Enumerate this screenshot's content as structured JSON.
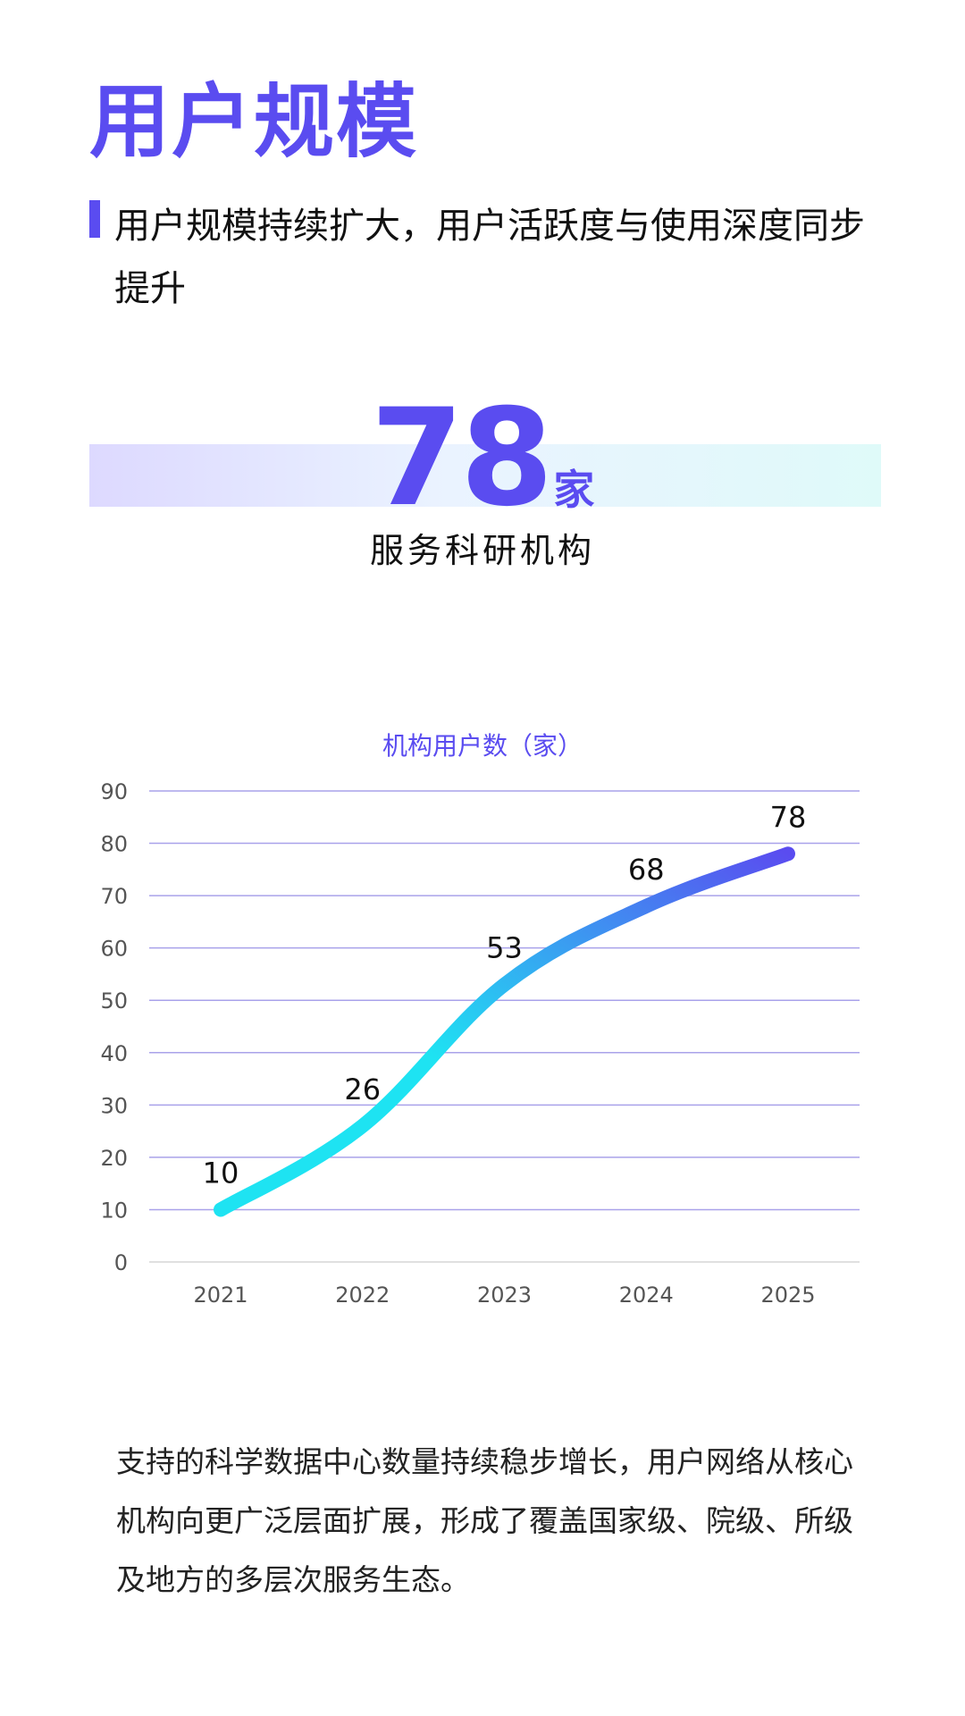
{
  "header": {
    "title": "用户规模",
    "subtitle": "用户规模持续扩大，用户活跃度与使用深度同步提升"
  },
  "stat": {
    "value": "78",
    "unit": "家",
    "label": "服务科研机构"
  },
  "chart_data": {
    "type": "line",
    "title": "机构用户数（家）",
    "xlabel": "",
    "ylabel": "",
    "categories": [
      "2021",
      "2022",
      "2023",
      "2024",
      "2025"
    ],
    "series": [
      {
        "values": [
          10,
          26,
          53,
          68,
          78
        ]
      }
    ],
    "data_labels": [
      "10",
      "26",
      "53",
      "68",
      "78"
    ],
    "y_ticks": [
      0,
      10,
      20,
      30,
      40,
      50,
      60,
      70,
      80,
      90
    ],
    "ylim": [
      0,
      90
    ],
    "grid": true,
    "colors": {
      "line_start": "#1ee3f2",
      "line_end": "#5a4cf0",
      "grid": "#a9a2ea",
      "axis_text": "#555555"
    }
  },
  "body": {
    "paragraph": "支持的科学数据中心数量持续稳步增长，用户网络从核心机构向更广泛层面扩展，形成了覆盖国家级、院级、所级及地方的多层次服务生态。"
  },
  "colors": {
    "accent": "#5a4cf0"
  }
}
